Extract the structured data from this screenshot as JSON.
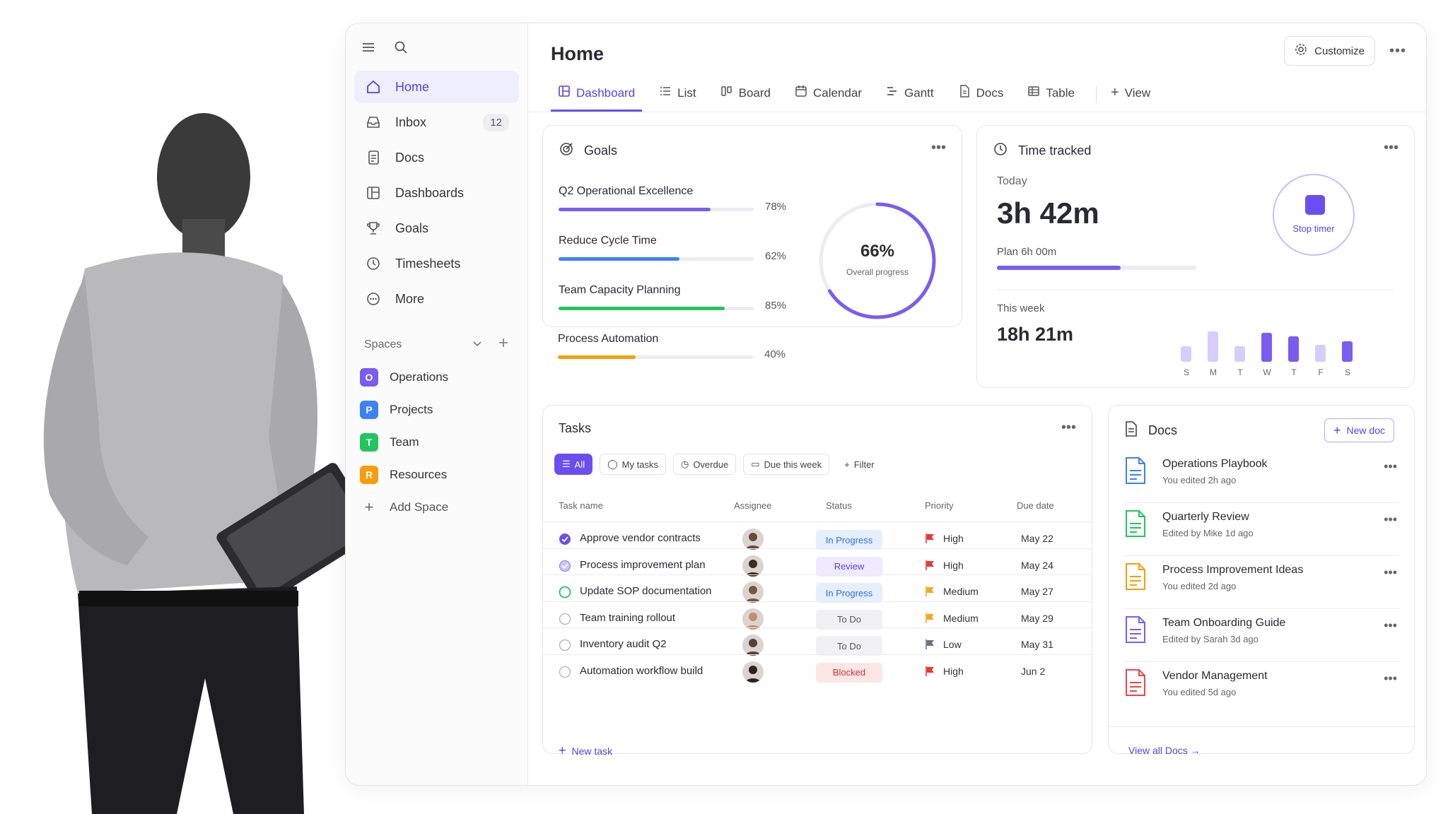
{
  "sidebar": {
    "nav": [
      {
        "label": "Home",
        "icon": "home-icon"
      },
      {
        "label": "Inbox",
        "icon": "inbox-icon",
        "count": "12"
      },
      {
        "label": "Docs",
        "icon": "doc-icon"
      },
      {
        "label": "Dashboards",
        "icon": "dashboard-icon"
      },
      {
        "label": "Goals",
        "icon": "trophy-icon"
      },
      {
        "label": "Timesheets",
        "icon": "clock-icon"
      },
      {
        "label": "More",
        "icon": "more-circle-icon"
      }
    ],
    "spaces_label": "Spaces",
    "spaces": [
      {
        "letter": "O",
        "label": "Operations",
        "color": "#7b5cf0"
      },
      {
        "letter": "P",
        "label": "Projects",
        "color": "#3b82f6"
      },
      {
        "letter": "T",
        "label": "Team",
        "color": "#22c55e"
      },
      {
        "letter": "R",
        "label": "Resources",
        "color": "#f59e0b"
      }
    ],
    "add_space": "Add Space"
  },
  "header": {
    "title": "Home",
    "customize": "Customize",
    "tabs": [
      "Dashboard",
      "List",
      "Board",
      "Calendar",
      "Gantt",
      "Docs",
      "Table"
    ],
    "add_view": "View"
  },
  "goals": {
    "title": "Goals",
    "items": [
      {
        "name": "Q2 Operational Excellence",
        "pct_label": "78%",
        "value": 0.78,
        "color": "#7b5cf0"
      },
      {
        "name": "Reduce Cycle Time",
        "pct_label": "62%",
        "value": 0.62,
        "color": "#3b82f6"
      },
      {
        "name": "Team Capacity Planning",
        "pct_label": "85%",
        "value": 0.85,
        "color": "#22c55e"
      },
      {
        "name": "Process Automation",
        "pct_label": "40%",
        "value": 0.4,
        "color": "#f59e0b"
      }
    ],
    "overall_value": "66%",
    "overall_fraction": 0.66,
    "overall_label": "Overall progress"
  },
  "time": {
    "title": "Time tracked",
    "today_label": "Today",
    "today_value": "3h 42m",
    "plan_label": "Plan 6h 00m",
    "plan_fraction": 0.62,
    "stop_label": "Stop timer",
    "week_label": "This week",
    "week_value": "18h 21m",
    "days": [
      "S",
      "M",
      "T",
      "W",
      "T",
      "F",
      "S"
    ],
    "day_levels": [
      0.45,
      0.9,
      0.45,
      0.85,
      0.75,
      0.5,
      0.6
    ],
    "day_strong": [
      false,
      false,
      false,
      true,
      true,
      false,
      true
    ]
  },
  "tasks": {
    "title": "Tasks",
    "filters": [
      "All",
      "My tasks",
      "Overdue",
      "Due this week",
      "Filter"
    ],
    "columns": [
      "Task name",
      "Assignee",
      "Status",
      "Priority",
      "Due date"
    ],
    "rows": [
      {
        "name": "Approve vendor contracts",
        "status": "In Progress",
        "priority": "High",
        "due": "May 22",
        "check": "done"
      },
      {
        "name": "Process improvement plan",
        "status": "Review",
        "priority": "High",
        "due": "May 24",
        "check": "half"
      },
      {
        "name": "Update SOP documentation",
        "status": "In Progress",
        "priority": "Medium",
        "due": "May 27",
        "check": "green"
      },
      {
        "name": "Team training rollout",
        "status": "To Do",
        "priority": "Medium",
        "due": "May 29",
        "check": "empty"
      },
      {
        "name": "Inventory audit Q2",
        "status": "To Do",
        "priority": "Low",
        "due": "May 31",
        "check": "empty"
      },
      {
        "name": "Automation workflow build",
        "status": "Blocked",
        "priority": "High",
        "due": "Jun 2",
        "check": "empty"
      }
    ],
    "new_task": "New task"
  },
  "docs": {
    "title": "Docs",
    "new_doc": "New doc",
    "items": [
      {
        "name": "Operations Playbook",
        "sub": "You edited 2h ago",
        "color": "#3b82f6"
      },
      {
        "name": "Quarterly Review",
        "sub": "Edited by Mike 1d ago",
        "color": "#22c55e"
      },
      {
        "name": "Process Improvement Ideas",
        "sub": "You edited 2d ago",
        "color": "#f59e0b"
      },
      {
        "name": "Team Onboarding Guide",
        "sub": "Edited by Sarah 3d ago",
        "color": "#7b5cf0"
      },
      {
        "name": "Vendor Management",
        "sub": "You edited 5d ago",
        "color": "#ef4444"
      }
    ],
    "view_all": "View all Docs"
  },
  "colors": {
    "accent": "#6b4ef0",
    "high": "#e53935",
    "medium": "#f5a623",
    "low": "#6b7280"
  }
}
